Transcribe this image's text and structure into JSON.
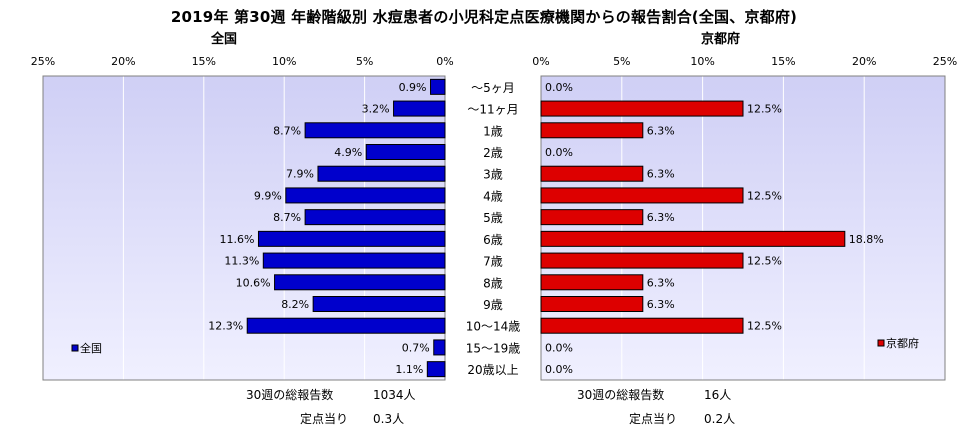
{
  "title": "2019年 第30週 年齢階級別 水痘患者の小児科定点医療機関からの報告割合(全国、京都府)",
  "colors": {
    "national_bar": "#0000cc",
    "kyoto_bar": "#dd0000",
    "plot_bg_top": "#cfcff5",
    "plot_bg_bottom": "#f0f0ff",
    "grid": "#ffffff"
  },
  "chart_data": [
    {
      "type": "bar",
      "orientation": "horizontal",
      "direction": "reversed",
      "title": "全国",
      "categories": [
        "～5ヶ月",
        "～11ヶ月",
        "1歳",
        "2歳",
        "3歳",
        "4歳",
        "5歳",
        "6歳",
        "7歳",
        "8歳",
        "9歳",
        "10～14歳",
        "15～19歳",
        "20歳以上"
      ],
      "series": [
        {
          "name": "全国",
          "values": [
            0.9,
            3.2,
            8.7,
            4.9,
            7.9,
            9.9,
            8.7,
            11.6,
            11.3,
            10.6,
            8.2,
            12.3,
            0.7,
            1.1
          ]
        }
      ],
      "data_labels": [
        "0.9%",
        "3.2%",
        "8.7%",
        "4.9%",
        "7.9%",
        "9.9%",
        "8.7%",
        "11.6%",
        "11.3%",
        "10.6%",
        "8.2%",
        "12.3%",
        "0.7%",
        "1.1%"
      ],
      "xlim": [
        0,
        25
      ],
      "tick_labels": [
        "25%",
        "20%",
        "15%",
        "10%",
        "5%",
        "0%"
      ],
      "legend": "bottom-left",
      "grid": true
    },
    {
      "type": "bar",
      "orientation": "horizontal",
      "title": "京都府",
      "categories": [
        "～5ヶ月",
        "～11ヶ月",
        "1歳",
        "2歳",
        "3歳",
        "4歳",
        "5歳",
        "6歳",
        "7歳",
        "8歳",
        "9歳",
        "10～14歳",
        "15～19歳",
        "20歳以上"
      ],
      "series": [
        {
          "name": "京都府",
          "values": [
            0.0,
            12.5,
            6.3,
            0.0,
            6.3,
            12.5,
            6.3,
            18.8,
            12.5,
            6.3,
            6.3,
            12.5,
            0.0,
            0.0
          ]
        }
      ],
      "data_labels": [
        "0.0%",
        "12.5%",
        "6.3%",
        "0.0%",
        "6.3%",
        "12.5%",
        "6.3%",
        "18.8%",
        "12.5%",
        "6.3%",
        "6.3%",
        "12.5%",
        "0.0%",
        "0.0%"
      ],
      "xlim": [
        0,
        25
      ],
      "tick_labels": [
        "0%",
        "5%",
        "10%",
        "15%",
        "20%",
        "25%"
      ],
      "legend": "bottom-right",
      "grid": true
    }
  ],
  "footer": {
    "national": {
      "total_label": "30週の総報告数",
      "total_value": "1034人",
      "per_label": "定点当り",
      "per_value": "0.3人"
    },
    "kyoto": {
      "total_label": "30週の総報告数",
      "total_value": "16人",
      "per_label": "定点当り",
      "per_value": "0.2人"
    }
  }
}
